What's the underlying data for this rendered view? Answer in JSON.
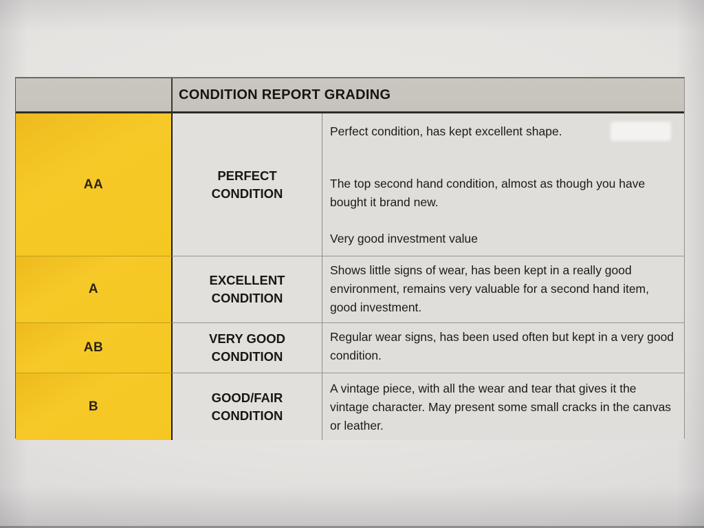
{
  "document": {
    "kind": "printed-table-photo",
    "header": {
      "title": "CONDITION REPORT GRADING"
    },
    "table": {
      "rows": [
        {
          "grade": "AA",
          "condition": "PERFECT CONDITION",
          "description_paragraphs": [
            "Perfect condition, has kept excellent shape.",
            "The top second hand condition, almost as though you have bought it brand new.",
            "Very good investment value"
          ]
        },
        {
          "grade": "A",
          "condition": "EXCELLENT CONDITION",
          "description_paragraphs": [
            "Shows little signs of wear, has been kept in a really good environment, remains very valuable for a second hand item, good investment."
          ]
        },
        {
          "grade": "AB",
          "condition": "VERY GOOD CONDITION",
          "description_paragraphs": [
            "Regular wear signs, has been used often but kept in a very good condition."
          ]
        },
        {
          "grade": "B",
          "condition": "GOOD/FAIR CONDITION",
          "description_paragraphs": [
            "A vintage piece, with all the wear and tear that gives it the vintage character. May present some small cracks in the canvas or leather."
          ]
        }
      ]
    },
    "colors": {
      "grade_column_yellow": "#f5c725",
      "header_band_gray": "#c7c3bd",
      "cell_background": "#e0deda",
      "paper_background": "#e7e5e2",
      "text": "#1b1916"
    }
  }
}
